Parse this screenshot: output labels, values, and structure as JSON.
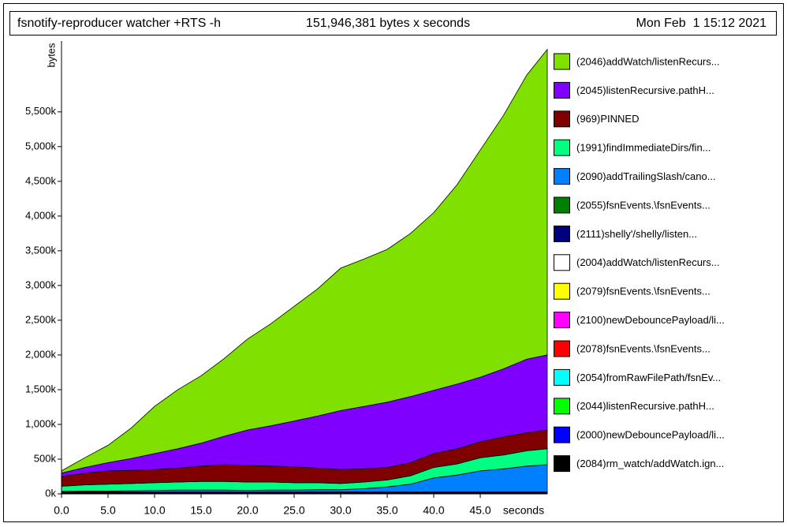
{
  "chart_data": {
    "type": "stacked-area",
    "title": "fsnotify-reproducer watcher +RTS -h",
    "subtitle": "151,946,381 bytes x seconds",
    "date": "Mon Feb  1 15:12 2021",
    "y_label": "bytes",
    "x_label": "seconds",
    "x": [
      0,
      2.5,
      5,
      7.5,
      10,
      12.5,
      15,
      17.5,
      20,
      22.5,
      25,
      27.5,
      30,
      32.5,
      35,
      37.5,
      40,
      42.5,
      45,
      47.5,
      50,
      52.2
    ],
    "xlim": [
      0,
      52.2
    ],
    "ylim": [
      0,
      6520
    ],
    "xticks": [
      {
        "value": 0,
        "label": "0.0"
      },
      {
        "value": 5,
        "label": "5.0"
      },
      {
        "value": 10,
        "label": "10.0"
      },
      {
        "value": 15,
        "label": "15.0"
      },
      {
        "value": 20,
        "label": "20.0"
      },
      {
        "value": 25,
        "label": "25.0"
      },
      {
        "value": 30,
        "label": "30.0"
      },
      {
        "value": 35,
        "label": "35.0"
      },
      {
        "value": 40,
        "label": "40.0"
      },
      {
        "value": 45,
        "label": "45.0"
      }
    ],
    "yticks": [
      {
        "value": 0,
        "label": "0k"
      },
      {
        "value": 500,
        "label": "500k"
      },
      {
        "value": 1000,
        "label": "1,000k"
      },
      {
        "value": 1500,
        "label": "1,500k"
      },
      {
        "value": 2000,
        "label": "2,000k"
      },
      {
        "value": 2500,
        "label": "2,500k"
      },
      {
        "value": 3000,
        "label": "3,000k"
      },
      {
        "value": 3500,
        "label": "3,500k"
      },
      {
        "value": 4000,
        "label": "4,000k"
      },
      {
        "value": 4500,
        "label": "4,500k"
      },
      {
        "value": 5000,
        "label": "5,000k"
      },
      {
        "value": 5500,
        "label": "5,500k"
      }
    ],
    "series": [
      {
        "name": "(2046)addWatch/listenRecurs...",
        "color": "#80e000",
        "values": [
          30,
          140,
          250,
          440,
          680,
          850,
          970,
          1120,
          1310,
          1470,
          1650,
          1830,
          2050,
          2120,
          2200,
          2350,
          2560,
          2870,
          3270,
          3650,
          4090,
          4400
        ]
      },
      {
        "name": "(2045)listenRecursive.pathH...",
        "color": "#8000ff",
        "values": [
          50,
          80,
          120,
          170,
          230,
          280,
          330,
          410,
          510,
          580,
          660,
          750,
          850,
          900,
          940,
          950,
          910,
          930,
          930,
          980,
          1060,
          1080
        ]
      },
      {
        "name": "(969)PINNED",
        "color": "#800000",
        "values": [
          140,
          170,
          190,
          190,
          190,
          200,
          220,
          240,
          240,
          230,
          230,
          210,
          200,
          190,
          180,
          190,
          200,
          220,
          230,
          260,
          260,
          270
        ]
      },
      {
        "name": "(1991)findImmediateDirs/fin...",
        "color": "#00ff80",
        "values": [
          75,
          90,
          100,
          105,
          110,
          115,
          125,
          125,
          120,
          115,
          105,
          100,
          90,
          95,
          100,
          120,
          150,
          160,
          190,
          200,
          220,
          230
        ]
      },
      {
        "name": "(2090)addTrailingSlash/cano...",
        "color": "#0080ff",
        "values": [
          5,
          10,
          10,
          15,
          20,
          25,
          25,
          25,
          20,
          25,
          25,
          30,
          30,
          45,
          70,
          110,
          200,
          240,
          300,
          330,
          370,
          390
        ]
      },
      {
        "name": "(2055)fsnEvents.\\fsnEvents...",
        "color": "#008000",
        "values": [
          5,
          5,
          5,
          5,
          5,
          5,
          5,
          5,
          5,
          5,
          5,
          5,
          5,
          5,
          5,
          5,
          5,
          5,
          5,
          5,
          5,
          5
        ]
      },
      {
        "name": "(2111)shelly'/shelly/listen...",
        "color": "#000080",
        "values": [
          3,
          3,
          3,
          3,
          3,
          3,
          3,
          3,
          3,
          3,
          3,
          3,
          3,
          3,
          3,
          3,
          3,
          3,
          3,
          3,
          3,
          3
        ]
      },
      {
        "name": "(2004)addWatch/listenRecurs...",
        "color": "#ffffff",
        "values": [
          2,
          2,
          2,
          2,
          2,
          2,
          2,
          2,
          2,
          2,
          2,
          2,
          2,
          2,
          2,
          2,
          2,
          2,
          2,
          2,
          2,
          2
        ]
      },
      {
        "name": "(2079)fsnEvents.\\fsnEvents...",
        "color": "#ffff00",
        "values": [
          2,
          2,
          2,
          2,
          2,
          2,
          2,
          2,
          2,
          2,
          2,
          2,
          2,
          2,
          2,
          2,
          2,
          2,
          2,
          2,
          2,
          2
        ]
      },
      {
        "name": "(2100)newDebouncePayload/li...",
        "color": "#ff00ff",
        "values": [
          2,
          2,
          2,
          2,
          2,
          2,
          2,
          2,
          2,
          2,
          2,
          2,
          2,
          2,
          2,
          2,
          2,
          2,
          2,
          2,
          2,
          2
        ]
      },
      {
        "name": "(2078)fsnEvents.\\fsnEvents...",
        "color": "#ff0000",
        "values": [
          3,
          3,
          3,
          3,
          3,
          3,
          3,
          3,
          3,
          3,
          3,
          3,
          3,
          3,
          3,
          3,
          3,
          3,
          3,
          3,
          3,
          3
        ]
      },
      {
        "name": "(2054)fromRawFilePath/fsnEv...",
        "color": "#00ffff",
        "values": [
          3,
          3,
          3,
          3,
          3,
          3,
          3,
          3,
          3,
          3,
          3,
          3,
          3,
          3,
          3,
          3,
          3,
          3,
          3,
          3,
          3,
          3
        ]
      },
      {
        "name": "(2044)listenRecursive.pathH...",
        "color": "#00ff00",
        "values": [
          3,
          3,
          3,
          3,
          3,
          3,
          3,
          3,
          3,
          3,
          3,
          3,
          3,
          3,
          3,
          3,
          3,
          3,
          3,
          3,
          3,
          3
        ]
      },
      {
        "name": "(2000)newDebouncePayload/li...",
        "color": "#0000ff",
        "values": [
          3,
          3,
          3,
          3,
          3,
          3,
          3,
          3,
          3,
          3,
          3,
          3,
          3,
          3,
          3,
          3,
          3,
          3,
          3,
          3,
          3,
          3
        ]
      },
      {
        "name": "(2084)rm_watch/addWatch.ign...",
        "color": "#000000",
        "values": [
          4,
          4,
          4,
          4,
          4,
          4,
          4,
          4,
          4,
          4,
          4,
          4,
          4,
          4,
          4,
          4,
          4,
          4,
          4,
          4,
          4,
          4
        ]
      }
    ]
  }
}
